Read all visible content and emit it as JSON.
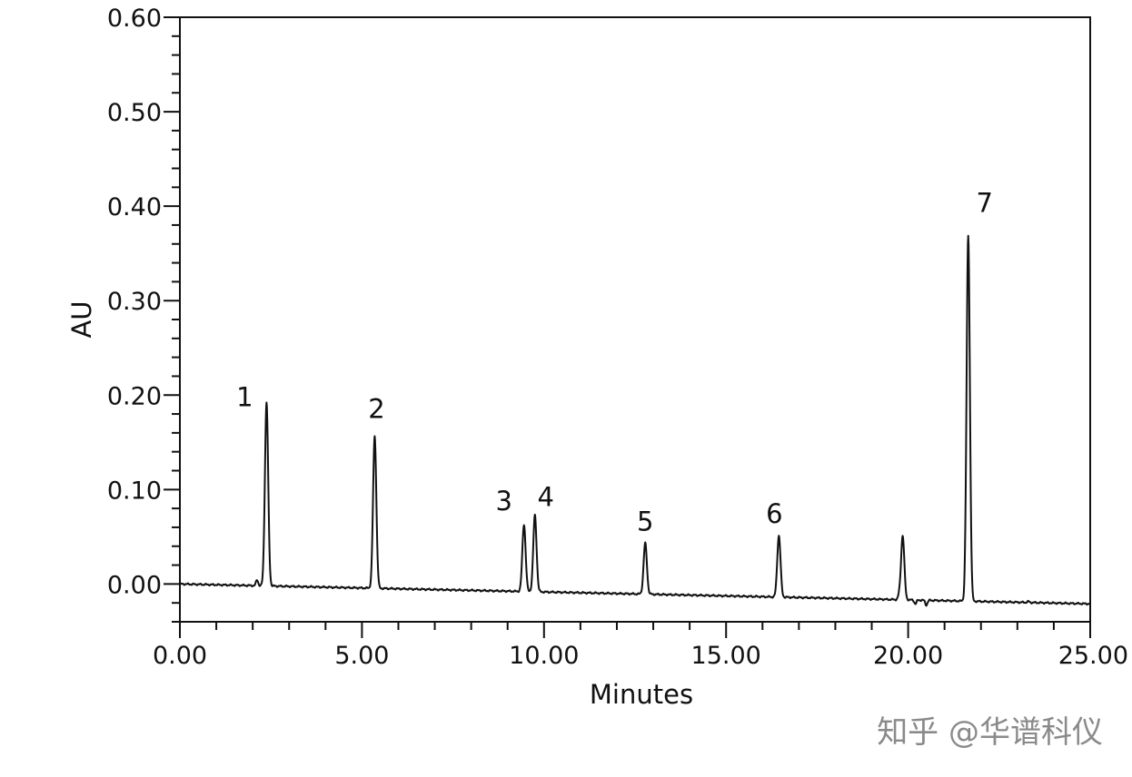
{
  "chart_data": {
    "type": "line",
    "title": "",
    "xlabel": "Minutes",
    "ylabel": "AU",
    "xlim": [
      0,
      25
    ],
    "ylim": [
      -0.04,
      0.6
    ],
    "x_ticks": [
      "0.00",
      "5.00",
      "10.00",
      "15.00",
      "20.00",
      "25.00"
    ],
    "y_ticks": [
      "0.00",
      "0.10",
      "0.20",
      "0.30",
      "0.40",
      "0.50",
      "0.60"
    ],
    "grid": false,
    "baseline": {
      "start": 0.0,
      "end": -0.021
    },
    "peaks": [
      {
        "label": "1",
        "rt": 2.38,
        "height": 0.194
      },
      {
        "label": "2",
        "rt": 5.35,
        "height": 0.161
      },
      {
        "label": "3",
        "rt": 9.45,
        "height": 0.071
      },
      {
        "label": "4",
        "rt": 9.75,
        "height": 0.081
      },
      {
        "label": "5",
        "rt": 12.78,
        "height": 0.054
      },
      {
        "label": "6",
        "rt": 16.45,
        "height": 0.065
      },
      {
        "label": "",
        "rt": 19.85,
        "height": 0.068
      },
      {
        "label": "7",
        "rt": 21.65,
        "height": 0.387
      }
    ],
    "minor_peaks": [
      {
        "rt": 2.12,
        "height": 0.006
      },
      {
        "rt": 19.75,
        "height": 0.004
      },
      {
        "rt": 20.2,
        "height": -0.004
      },
      {
        "rt": 20.5,
        "height": -0.005
      },
      {
        "rt": 23.3,
        "height": 0.001
      }
    ]
  },
  "watermark": "知乎 @华谱科仪"
}
